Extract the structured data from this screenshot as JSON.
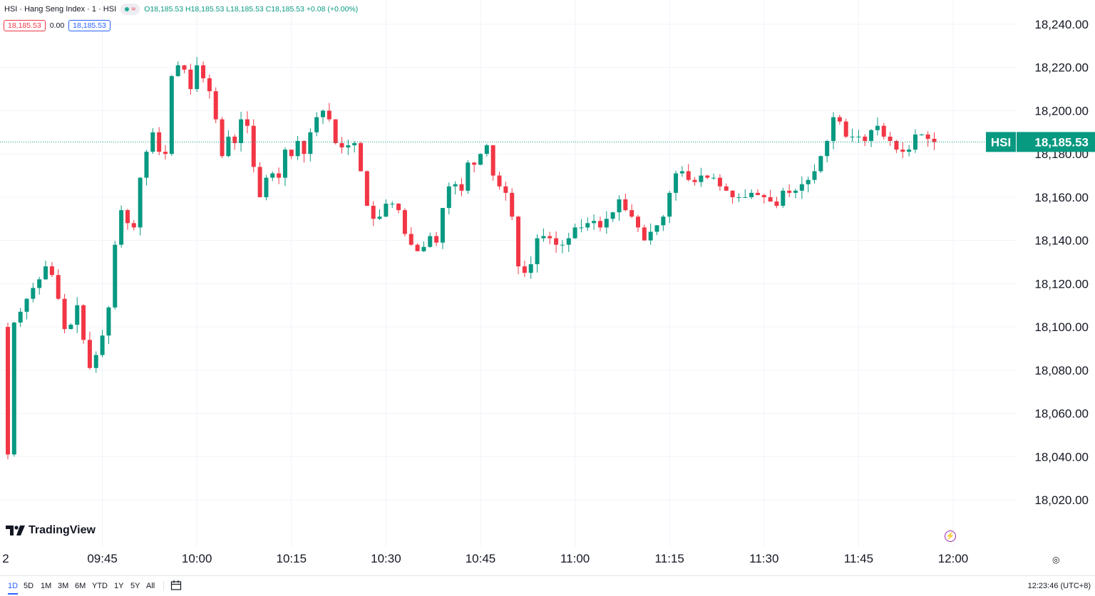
{
  "legend": {
    "symbol": "HSI · Hang Seng Index · 1 · HSI",
    "ohlc": "O18,185.53 H18,185.53 L18,185.53 C18,185.53 +0.08 (+0.00%)"
  },
  "badges": {
    "sell": "18,185.53",
    "spread": "0.00",
    "buy": "18,185.53"
  },
  "logo": "TradingView",
  "timeframes": [
    "1D",
    "5D",
    "1M",
    "3M",
    "6M",
    "YTD",
    "1Y",
    "5Y",
    "All"
  ],
  "active_timeframe": "1D",
  "clock": "12:23:46 (UTC+8)",
  "colors": {
    "up": "#089981",
    "down": "#f23645",
    "grid": "#f0f3fa",
    "last": "#089981"
  },
  "chart_data": {
    "type": "candlestick",
    "title": "HSI · Hang Seng Index · 1 · HSI",
    "xlabel": "",
    "ylabel": "",
    "ylim": [
      18010,
      18245
    ],
    "y_ticks": [
      "18,240.00",
      "18,220.00",
      "18,200.00",
      "18,180.00",
      "18,160.00",
      "18,140.00",
      "18,120.00",
      "18,100.00",
      "18,080.00",
      "18,060.00",
      "18,040.00",
      "18,020.00"
    ],
    "y_tick_values": [
      18240,
      18220,
      18200,
      18180,
      18160,
      18140,
      18120,
      18100,
      18080,
      18060,
      18040,
      18020
    ],
    "x_ticks": [
      "2",
      "09:45",
      "10:00",
      "10:15",
      "10:30",
      "10:45",
      "11:00",
      "11:15",
      "11:30",
      "11:45",
      "12:00"
    ],
    "x_tick_minutes": [
      -15,
      15,
      30,
      45,
      60,
      75,
      90,
      105,
      120,
      135,
      150
    ],
    "start_minute": 0,
    "last_price_label": "HSI",
    "last_price": 18185.53,
    "last_price_text": "18,185.53",
    "closes": [
      18041,
      18102,
      18107,
      18113,
      18118,
      18122,
      18128,
      18124,
      18113,
      18099,
      18101,
      18110,
      18094,
      18081,
      18087,
      18096,
      18109,
      18138,
      18154,
      18148,
      18146,
      18169,
      18181,
      18190,
      18181,
      18180,
      18216,
      18221,
      18219,
      18210,
      18221,
      18215,
      18209,
      18196,
      18179,
      18188,
      18185,
      18196,
      18193,
      18174,
      18160,
      18169,
      18171,
      18169,
      18182,
      18179,
      18186,
      18180,
      18190,
      18197,
      18200,
      18196,
      18185,
      18183,
      18184,
      18185,
      18172,
      18156,
      18150,
      18151,
      18157,
      18157,
      18154,
      18143,
      18138,
      18135,
      18137,
      18142,
      18139,
      18155,
      18165,
      18166,
      18163,
      18176,
      18175,
      18180,
      18184,
      18170,
      18165,
      18162,
      18151,
      18128,
      18125,
      18129,
      18141,
      18142,
      18141,
      18138,
      18138,
      18141,
      18146,
      18146,
      18148,
      18149,
      18146,
      18150,
      18153,
      18159,
      18154,
      18151,
      18146,
      18140,
      18144,
      18147,
      18151,
      18162,
      18171,
      18172,
      18168,
      18167,
      18170,
      18169,
      18169,
      18165,
      18163,
      18160,
      18160,
      18160,
      18162,
      18161,
      18160,
      18158,
      18156,
      18163,
      18162,
      18163,
      18166,
      18168,
      18172,
      18179,
      18186,
      18197,
      18195,
      18188,
      18188,
      18188,
      18186,
      18191,
      18193,
      18188,
      18186,
      18182,
      18181,
      18182,
      18189,
      18189,
      18187,
      18185.5
    ]
  }
}
